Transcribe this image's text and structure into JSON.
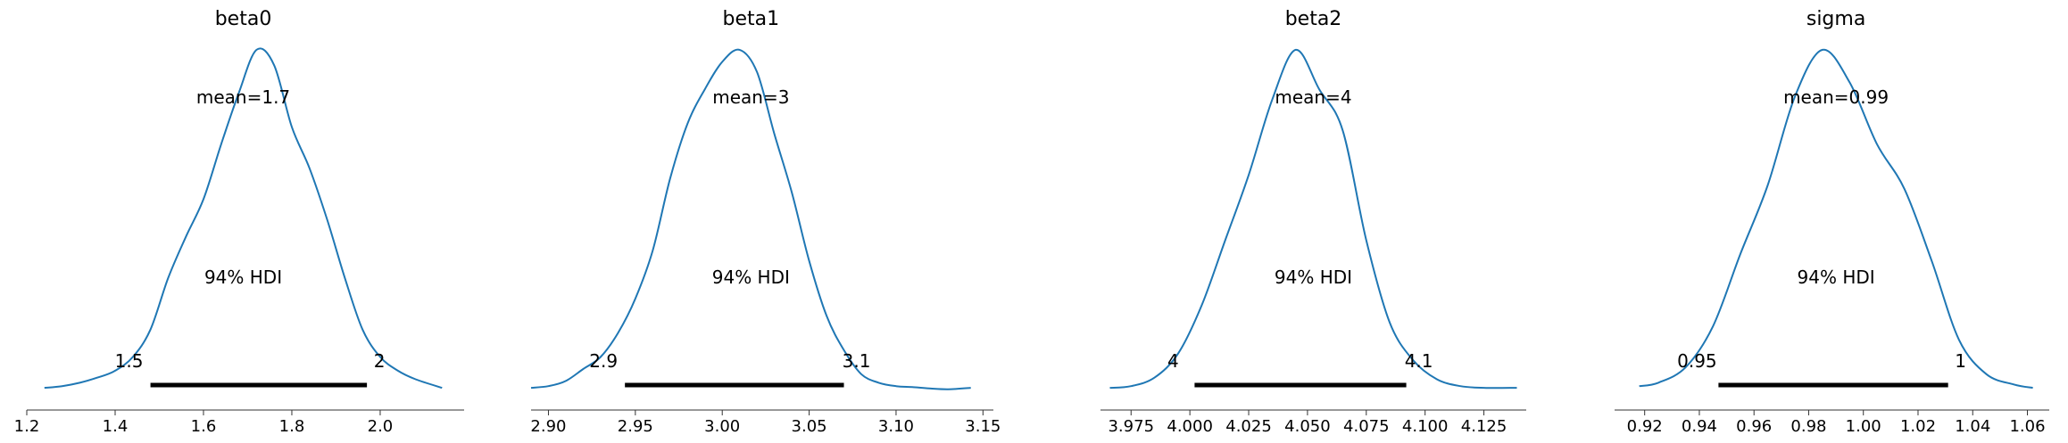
{
  "chart_data": [
    {
      "type": "density",
      "title": "beta0",
      "color": "#1f77b4",
      "xlim": [
        1.2,
        2.19
      ],
      "xticks": [
        1.2,
        1.4,
        1.6,
        1.8,
        2.0
      ],
      "xtick_labels": [
        "1.2",
        "1.4",
        "1.6",
        "1.8",
        "2.0"
      ],
      "range": [
        1.24,
        2.14
      ],
      "curve": [
        [
          1.24,
          0.01
        ],
        [
          1.28,
          0.015
        ],
        [
          1.32,
          0.025
        ],
        [
          1.36,
          0.04
        ],
        [
          1.4,
          0.06
        ],
        [
          1.44,
          0.1
        ],
        [
          1.48,
          0.18
        ],
        [
          1.52,
          0.33
        ],
        [
          1.56,
          0.45
        ],
        [
          1.6,
          0.56
        ],
        [
          1.64,
          0.72
        ],
        [
          1.68,
          0.87
        ],
        [
          1.72,
          0.995
        ],
        [
          1.76,
          0.95
        ],
        [
          1.8,
          0.77
        ],
        [
          1.84,
          0.65
        ],
        [
          1.88,
          0.5
        ],
        [
          1.92,
          0.33
        ],
        [
          1.96,
          0.18
        ],
        [
          2.0,
          0.1
        ],
        [
          2.04,
          0.06
        ],
        [
          2.08,
          0.035
        ],
        [
          2.14,
          0.01
        ]
      ],
      "mean_label": "mean=1.7",
      "hdi_label": "94% HDI",
      "hdi": [
        1.48,
        1.97
      ],
      "hdi_low_label": "1.5",
      "hdi_high_label": "2"
    },
    {
      "type": "density",
      "title": "beta1",
      "color": "#1f77b4",
      "xlim": [
        2.89,
        3.156
      ],
      "xticks": [
        2.9,
        2.95,
        3.0,
        3.05,
        3.1,
        3.15
      ],
      "xtick_labels": [
        "2.90",
        "2.95",
        "3.00",
        "3.05",
        "3.10",
        "3.15"
      ],
      "range": [
        2.89,
        3.143
      ],
      "curve": [
        [
          2.89,
          0.01
        ],
        [
          2.9,
          0.015
        ],
        [
          2.91,
          0.03
        ],
        [
          2.92,
          0.065
        ],
        [
          2.93,
          0.1
        ],
        [
          2.94,
          0.17
        ],
        [
          2.95,
          0.27
        ],
        [
          2.96,
          0.41
        ],
        [
          2.97,
          0.62
        ],
        [
          2.98,
          0.78
        ],
        [
          2.99,
          0.88
        ],
        [
          3.0,
          0.96
        ],
        [
          3.01,
          0.995
        ],
        [
          3.02,
          0.93
        ],
        [
          3.03,
          0.75
        ],
        [
          3.04,
          0.58
        ],
        [
          3.05,
          0.38
        ],
        [
          3.06,
          0.22
        ],
        [
          3.07,
          0.12
        ],
        [
          3.08,
          0.05
        ],
        [
          3.09,
          0.025
        ],
        [
          3.1,
          0.015
        ],
        [
          3.11,
          0.012
        ],
        [
          3.12,
          0.008
        ],
        [
          3.13,
          0.006
        ],
        [
          3.143,
          0.01
        ]
      ],
      "mean_label": "mean=3",
      "hdi_label": "94% HDI",
      "hdi": [
        2.944,
        3.07
      ],
      "hdi_low_label": "2.9",
      "hdi_high_label": "3.1"
    },
    {
      "type": "density",
      "title": "beta2",
      "color": "#1f77b4",
      "xlim": [
        3.962,
        4.143
      ],
      "xticks": [
        3.975,
        4.0,
        4.025,
        4.05,
        4.075,
        4.1,
        4.125
      ],
      "xtick_labels": [
        "3.975",
        "4.000",
        "4.025",
        "4.050",
        "4.075",
        "4.100",
        "4.125"
      ],
      "range": [
        3.966,
        4.139
      ],
      "curve": [
        [
          3.966,
          0.01
        ],
        [
          3.975,
          0.015
        ],
        [
          3.985,
          0.04
        ],
        [
          3.995,
          0.11
        ],
        [
          4.005,
          0.25
        ],
        [
          4.015,
          0.44
        ],
        [
          4.025,
          0.63
        ],
        [
          4.035,
          0.85
        ],
        [
          4.045,
          0.995
        ],
        [
          4.055,
          0.88
        ],
        [
          4.065,
          0.76
        ],
        [
          4.075,
          0.44
        ],
        [
          4.085,
          0.2
        ],
        [
          4.095,
          0.09
        ],
        [
          4.105,
          0.035
        ],
        [
          4.115,
          0.015
        ],
        [
          4.125,
          0.01
        ],
        [
          4.139,
          0.01
        ]
      ],
      "mean_label": "mean=4",
      "hdi_label": "94% HDI",
      "hdi": [
        4.002,
        4.092
      ],
      "hdi_low_label": "4",
      "hdi_high_label": "4.1"
    },
    {
      "type": "density",
      "title": "sigma",
      "color": "#1f77b4",
      "xlim": [
        0.909,
        1.068
      ],
      "xticks": [
        0.92,
        0.94,
        0.96,
        0.98,
        1.0,
        1.02,
        1.04,
        1.06
      ],
      "xtick_labels": [
        "0.92",
        "0.94",
        "0.96",
        "0.98",
        "1.00",
        "1.02",
        "1.04",
        "1.06"
      ],
      "range": [
        0.918,
        1.062
      ],
      "curve": [
        [
          0.918,
          0.015
        ],
        [
          0.925,
          0.025
        ],
        [
          0.935,
          0.07
        ],
        [
          0.945,
          0.19
        ],
        [
          0.955,
          0.4
        ],
        [
          0.965,
          0.6
        ],
        [
          0.975,
          0.86
        ],
        [
          0.985,
          0.995
        ],
        [
          0.995,
          0.9
        ],
        [
          1.005,
          0.72
        ],
        [
          1.015,
          0.59
        ],
        [
          1.025,
          0.38
        ],
        [
          1.035,
          0.15
        ],
        [
          1.045,
          0.05
        ],
        [
          1.055,
          0.02
        ],
        [
          1.062,
          0.01
        ]
      ],
      "mean_label": "mean=0.99",
      "hdi_label": "94% HDI",
      "hdi": [
        0.947,
        1.031
      ],
      "hdi_low_label": "0.95",
      "hdi_high_label": "1"
    }
  ]
}
